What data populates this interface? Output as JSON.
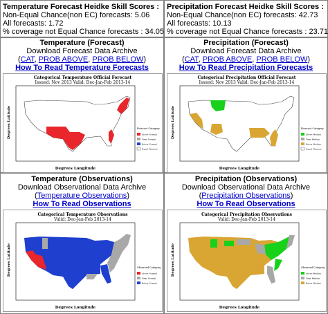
{
  "temp_scores": {
    "title": "Temperature Forecast Heidke Skill Scores :",
    "line1_label": "Non-Equal Chance(non EC) forecasts:",
    "line1_value": "5.06",
    "line2_label": "All forecasts:",
    "line2_value": "1.72",
    "line3_label": "% coverage not Equal Chance forecasts :",
    "line3_value": "34.05"
  },
  "precip_scores": {
    "title": "Precipitation Forecast Heidke Skill Scores :",
    "line1_label": "Non-Equal Chance(non EC) forecasts:",
    "line1_value": "42.73",
    "line2_label": "All forecasts:",
    "line2_value": "10.13",
    "line3_label": "% coverage not Equal Chance forecasts :",
    "line3_value": "23.71"
  },
  "temp_forecast": {
    "title": "Temperature (Forecast)",
    "subtitle": "Download Forecast Data Archive",
    "paren_open": "(",
    "link_cat": "CAT",
    "sep1": ",",
    "link_above": "PROB ABOVE",
    "sep2": ",",
    "link_below": "PROB BELOW",
    "paren_close": ")",
    "howto": "How To Read Temperature Forecasts",
    "map_title": "Categorical Temperature Official Forecast",
    "map_subtitle": "Issued: Nov 2013 Valid: Dec-Jan-Feb 2013-14",
    "ylabel": "Degrees Latitude",
    "xlabel": "Degrees Longitude",
    "legend_title": "Forecast Category",
    "legend": [
      "Above Normal",
      "Near Normal",
      "Below Normal",
      "Equal Chances"
    ]
  },
  "precip_forecast": {
    "title": "Precipitation (Forecast)",
    "subtitle": "Download Forecast Data Archive",
    "paren_open": "(",
    "link_cat": "CAT",
    "sep1": ",",
    "link_above": "PROB ABOVE",
    "sep2": ",",
    "link_below": "PROB BELOW",
    "paren_close": ")",
    "howto": "How To Read Precipitation Forecasts",
    "map_title": "Categorical Precipitation Official Forecast",
    "map_subtitle": "Issued: Nov 2013 Valid: Dec-Jan-Feb 2013-14",
    "ylabel": "Degrees Latitude",
    "xlabel": "Degrees Longitude",
    "legend_title": "Forecast Category",
    "legend": [
      "Above Median",
      "Near Median",
      "Below Median",
      "Equal Chances"
    ]
  },
  "temp_obs": {
    "title": "Temperature (Observations)",
    "subtitle": "Download Observational Data Archive",
    "paren_open": "(",
    "link": "Temperature Observations",
    "paren_close": ")",
    "howto": "How To Read Observations",
    "map_title": "Categorical Temperature Observations",
    "map_subtitle": "Valid: Dec-Jan-Feb 2013-14",
    "ylabel": "Degrees Latitude",
    "xlabel": "Degrees Longitude",
    "legend_title": "Observed Category",
    "legend": [
      "Above Normal",
      "Near Normal",
      "Below Normal"
    ]
  },
  "precip_obs": {
    "title": "Precipitation (Observations)",
    "subtitle": "Download Observational Data Archive",
    "paren_open": "(",
    "link": "Precipitation Observations",
    "paren_close": ")",
    "howto": "How To Read Observations",
    "map_title": "Categorical Precipitation Observations",
    "map_subtitle": "Valid: Dec-Jan-Feb 2013-14",
    "ylabel": "Degrees Latitude",
    "xlabel": "Degrees Longitude",
    "legend_title": "Observed Category",
    "legend": [
      "Above Median",
      "Near Median",
      "Below Median"
    ]
  },
  "colors": {
    "above_temp": "#e8262b",
    "below_temp": "#1f3fcf",
    "near": "#a8a8a8",
    "above_precip": "#17d11b",
    "below_precip": "#d9a634",
    "link": "#0000cc",
    "border": "#808080"
  }
}
